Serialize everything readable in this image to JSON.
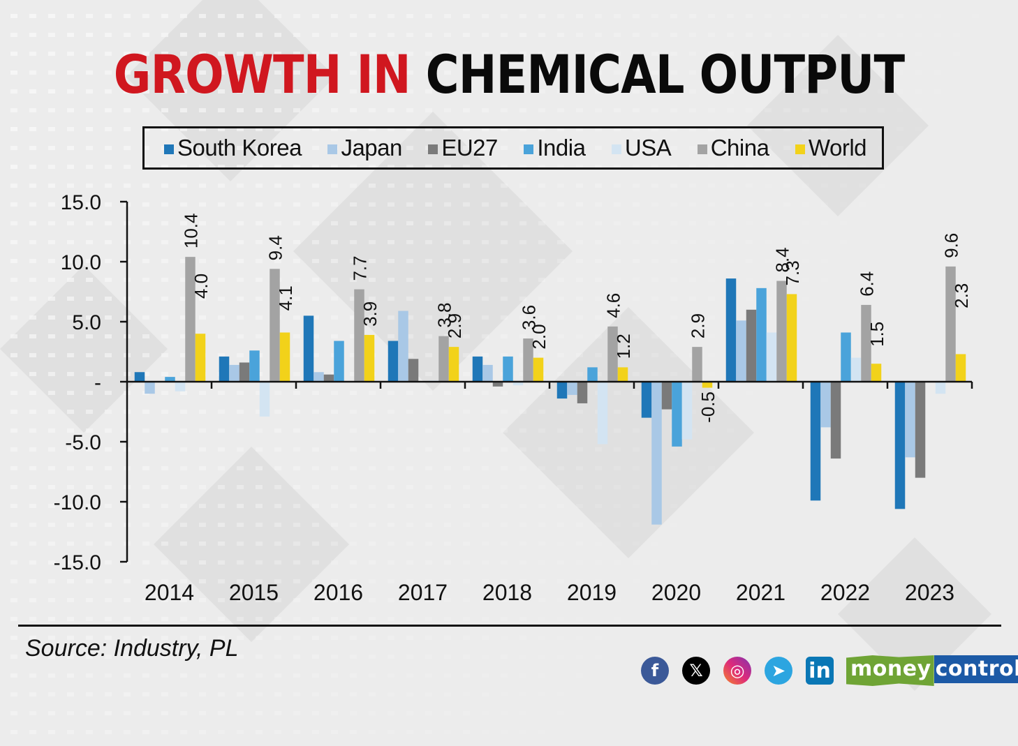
{
  "header": {
    "title_highlight": "GROWTH IN",
    "title_rest": "CHEMICAL OUTPUT"
  },
  "colors": {
    "title_red": "#d0171f",
    "south_korea": "#1f77b8",
    "japan": "#a9c8e6",
    "eu27": "#7a7a7a",
    "india": "#4aa3da",
    "usa": "#d3e4f2",
    "china": "#a3a3a3",
    "world": "#f2d21a"
  },
  "chart_data": {
    "type": "bar",
    "title": "GROWTH IN CHEMICAL OUTPUT",
    "xlabel": "",
    "ylabel": "",
    "ylim": [
      -15,
      15
    ],
    "yticks": [
      15,
      10,
      5,
      0,
      -5,
      -10,
      -15
    ],
    "ytick_labels": [
      "15.0",
      "10.0",
      "5.0",
      "-",
      "-5.0",
      "-10.0",
      "-15.0"
    ],
    "categories": [
      "2014",
      "2015",
      "2016",
      "2017",
      "2018",
      "2019",
      "2020",
      "2021",
      "2022",
      "2023"
    ],
    "legend_position": "top",
    "grid": false,
    "series": [
      {
        "name": "South Korea",
        "color_key": "south_korea",
        "values": [
          0.8,
          2.1,
          5.5,
          3.4,
          2.1,
          -1.4,
          -3.0,
          8.6,
          -9.9,
          -10.6
        ]
      },
      {
        "name": "Japan",
        "color_key": "japan",
        "values": [
          -1.0,
          1.4,
          0.8,
          5.9,
          1.4,
          -1.1,
          -11.9,
          5.1,
          -3.8,
          -6.3
        ]
      },
      {
        "name": "EU27",
        "color_key": "eu27",
        "values": [
          0.0,
          1.6,
          0.6,
          1.9,
          -0.4,
          -1.8,
          -2.3,
          6.0,
          -6.4,
          -8.0
        ]
      },
      {
        "name": "India",
        "color_key": "india",
        "values": [
          0.4,
          2.6,
          3.4,
          0.0,
          2.1,
          1.2,
          -5.4,
          7.8,
          4.1,
          0.0
        ]
      },
      {
        "name": "USA",
        "color_key": "usa",
        "values": [
          -0.8,
          -2.9,
          0.0,
          0.1,
          -0.3,
          -5.2,
          -4.8,
          4.1,
          2.0,
          -1.0
        ]
      },
      {
        "name": "China",
        "color_key": "china",
        "values": [
          10.4,
          9.4,
          7.7,
          3.8,
          3.6,
          4.6,
          2.9,
          8.4,
          6.4,
          9.6
        ],
        "data_labels": [
          "10.4",
          "9.4",
          "7.7",
          "3.8",
          "3.6",
          "4.6",
          "2.9",
          "8.4",
          "6.4",
          "9.6"
        ]
      },
      {
        "name": "World",
        "color_key": "world",
        "values": [
          4.0,
          4.1,
          3.9,
          2.9,
          2.0,
          1.2,
          -0.5,
          7.3,
          1.5,
          2.3
        ],
        "data_labels": [
          "4.0",
          "4.1",
          "3.9",
          "2.9",
          "2.0",
          "1.2",
          "-0.5",
          "7.3",
          "1.5",
          "2.3"
        ]
      }
    ]
  },
  "footer": {
    "source": "Source: Industry, PL",
    "social_icons": [
      {
        "name": "facebook-icon",
        "glyph": "f",
        "color": "#3b5998"
      },
      {
        "name": "x-icon",
        "glyph": "𝕏",
        "color": "#000000"
      },
      {
        "name": "instagram-icon",
        "glyph": "◎",
        "color": "#e1306c"
      },
      {
        "name": "telegram-icon",
        "glyph": "➤",
        "color": "#2ca5e0"
      },
      {
        "name": "linkedin-icon",
        "glyph": "in",
        "color": "#0a77b5"
      }
    ],
    "brand_part1": "money",
    "brand_part2": "control"
  }
}
